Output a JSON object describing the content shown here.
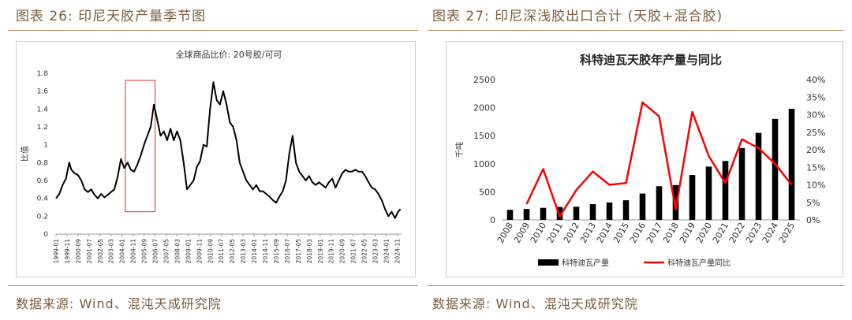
{
  "left": {
    "figure_title": "图表 26:  印尼天胶产量季节图",
    "source": "数据来源: Wind、混沌天成研究院"
  },
  "right": {
    "figure_title": "图表 27:  印尼深浅胶出口合计 (天胶+混合胶)",
    "source": "数据来源: Wind、混沌天成研究院"
  },
  "chart_data": [
    {
      "type": "line",
      "title": "全球商品比价: 20号胶/可可",
      "ylabel": "比值",
      "xlabel": "",
      "ylim": [
        0,
        1.8
      ],
      "y_ticks": [
        "0",
        "0.2",
        "0.4",
        "0.6",
        "0.8",
        "1",
        "1.2",
        "1.4",
        "1.6",
        "1.8"
      ],
      "x_ticks": [
        "1999-01",
        "1999-11",
        "2000-09",
        "2001-07",
        "2002-05",
        "2003-03",
        "2004-01",
        "2004-11",
        "2005-09",
        "2006-07",
        "2007-05",
        "2008-03",
        "2009-01",
        "2009-11",
        "2010-09",
        "2011-07",
        "2012-05",
        "2013-03",
        "2014-01",
        "2014-11",
        "2015-09",
        "2016-07",
        "2017-05",
        "2018-03",
        "2019-01",
        "2019-11",
        "2020-09",
        "2021-07",
        "2022-05",
        "2023-03",
        "2024-01",
        "2024-11"
      ],
      "x_start": "1999-01",
      "x_end": "2025-03",
      "highlight": {
        "from": "2004-04",
        "to": "2006-07",
        "ymin": 0.25,
        "ymax": 1.72
      },
      "series": [
        {
          "name": "",
          "color": "#000000",
          "points": [
            [
              "1999-01",
              0.4
            ],
            [
              "1999-04",
              0.45
            ],
            [
              "1999-07",
              0.55
            ],
            [
              "1999-10",
              0.62
            ],
            [
              "2000-01",
              0.8
            ],
            [
              "2000-03",
              0.72
            ],
            [
              "2000-06",
              0.68
            ],
            [
              "2000-09",
              0.66
            ],
            [
              "2000-12",
              0.6
            ],
            [
              "2001-03",
              0.5
            ],
            [
              "2001-06",
              0.47
            ],
            [
              "2001-09",
              0.5
            ],
            [
              "2001-12",
              0.44
            ],
            [
              "2002-03",
              0.4
            ],
            [
              "2002-06",
              0.45
            ],
            [
              "2002-09",
              0.41
            ],
            [
              "2002-12",
              0.44
            ],
            [
              "2003-03",
              0.47
            ],
            [
              "2003-06",
              0.5
            ],
            [
              "2003-09",
              0.64
            ],
            [
              "2003-12",
              0.84
            ],
            [
              "2004-03",
              0.74
            ],
            [
              "2004-06",
              0.8
            ],
            [
              "2004-09",
              0.72
            ],
            [
              "2004-12",
              0.7
            ],
            [
              "2005-03",
              0.78
            ],
            [
              "2005-06",
              0.88
            ],
            [
              "2005-09",
              1.0
            ],
            [
              "2005-12",
              1.1
            ],
            [
              "2006-03",
              1.2
            ],
            [
              "2006-06",
              1.45
            ],
            [
              "2006-09",
              1.28
            ],
            [
              "2006-12",
              1.1
            ],
            [
              "2007-03",
              1.15
            ],
            [
              "2007-06",
              1.05
            ],
            [
              "2007-09",
              1.18
            ],
            [
              "2007-12",
              1.05
            ],
            [
              "2008-03",
              1.15
            ],
            [
              "2008-06",
              1.05
            ],
            [
              "2008-09",
              0.8
            ],
            [
              "2008-12",
              0.5
            ],
            [
              "2009-03",
              0.55
            ],
            [
              "2009-06",
              0.6
            ],
            [
              "2009-09",
              0.75
            ],
            [
              "2009-12",
              0.82
            ],
            [
              "2010-03",
              1.0
            ],
            [
              "2010-06",
              0.98
            ],
            [
              "2010-09",
              1.4
            ],
            [
              "2010-12",
              1.7
            ],
            [
              "2011-03",
              1.5
            ],
            [
              "2011-06",
              1.45
            ],
            [
              "2011-09",
              1.6
            ],
            [
              "2011-12",
              1.45
            ],
            [
              "2012-03",
              1.25
            ],
            [
              "2012-06",
              1.2
            ],
            [
              "2012-09",
              1.05
            ],
            [
              "2012-12",
              0.8
            ],
            [
              "2013-03",
              0.7
            ],
            [
              "2013-06",
              0.6
            ],
            [
              "2013-09",
              0.55
            ],
            [
              "2013-12",
              0.5
            ],
            [
              "2014-03",
              0.55
            ],
            [
              "2014-06",
              0.48
            ],
            [
              "2014-09",
              0.48
            ],
            [
              "2014-12",
              0.45
            ],
            [
              "2015-03",
              0.42
            ],
            [
              "2015-06",
              0.38
            ],
            [
              "2015-09",
              0.35
            ],
            [
              "2015-12",
              0.42
            ],
            [
              "2016-03",
              0.48
            ],
            [
              "2016-06",
              0.6
            ],
            [
              "2016-09",
              0.9
            ],
            [
              "2016-12",
              1.1
            ],
            [
              "2017-03",
              0.8
            ],
            [
              "2017-06",
              0.7
            ],
            [
              "2017-09",
              0.65
            ],
            [
              "2017-12",
              0.6
            ],
            [
              "2018-03",
              0.65
            ],
            [
              "2018-06",
              0.58
            ],
            [
              "2018-09",
              0.55
            ],
            [
              "2018-12",
              0.58
            ],
            [
              "2019-03",
              0.55
            ],
            [
              "2019-06",
              0.52
            ],
            [
              "2019-09",
              0.58
            ],
            [
              "2019-12",
              0.62
            ],
            [
              "2020-03",
              0.52
            ],
            [
              "2020-06",
              0.6
            ],
            [
              "2020-09",
              0.68
            ],
            [
              "2020-12",
              0.72
            ],
            [
              "2021-03",
              0.7
            ],
            [
              "2021-06",
              0.7
            ],
            [
              "2021-09",
              0.72
            ],
            [
              "2021-12",
              0.7
            ],
            [
              "2022-03",
              0.7
            ],
            [
              "2022-06",
              0.65
            ],
            [
              "2022-09",
              0.58
            ],
            [
              "2022-12",
              0.52
            ],
            [
              "2023-03",
              0.5
            ],
            [
              "2023-06",
              0.45
            ],
            [
              "2023-09",
              0.38
            ],
            [
              "2023-12",
              0.28
            ],
            [
              "2024-03",
              0.2
            ],
            [
              "2024-06",
              0.25
            ],
            [
              "2024-09",
              0.18
            ],
            [
              "2024-12",
              0.25
            ],
            [
              "2025-02",
              0.28
            ]
          ]
        }
      ]
    },
    {
      "type": "bar",
      "title": "科特迪瓦天胶年产量与同比",
      "ylabel": "千吨",
      "ylim": [
        0,
        2500
      ],
      "y2lim": [
        0,
        40
      ],
      "y_ticks": [
        "0",
        "500",
        "1000",
        "1500",
        "2000",
        "2500"
      ],
      "y2_ticks": [
        "0%",
        "5%",
        "10%",
        "15%",
        "20%",
        "25%",
        "30%",
        "35%",
        "40%"
      ],
      "categories": [
        "2008",
        "2009",
        "2010",
        "2011",
        "2012",
        "2013",
        "2014",
        "2015",
        "2016",
        "2017",
        "2018",
        "2019",
        "2020",
        "2021",
        "2022",
        "2023",
        "2024",
        "2025"
      ],
      "series": [
        {
          "name": "科特迪瓦产量",
          "kind": "bar",
          "axis": "left",
          "color": "#000000",
          "values": [
            180,
            195,
            215,
            230,
            235,
            280,
            310,
            350,
            470,
            600,
            620,
            800,
            950,
            1050,
            1280,
            1550,
            1800,
            1980
          ]
        },
        {
          "name": "科特迪瓦产量同比",
          "kind": "line",
          "axis": "right",
          "color": "#ff0000",
          "values": [
            null,
            4.5,
            14.5,
            1.0,
            8.5,
            13.8,
            10.0,
            10.5,
            33.5,
            29.5,
            3.0,
            30.8,
            18.2,
            10.5,
            23.0,
            20.5,
            16.0,
            10.0
          ]
        }
      ],
      "legend": "bottom"
    }
  ]
}
